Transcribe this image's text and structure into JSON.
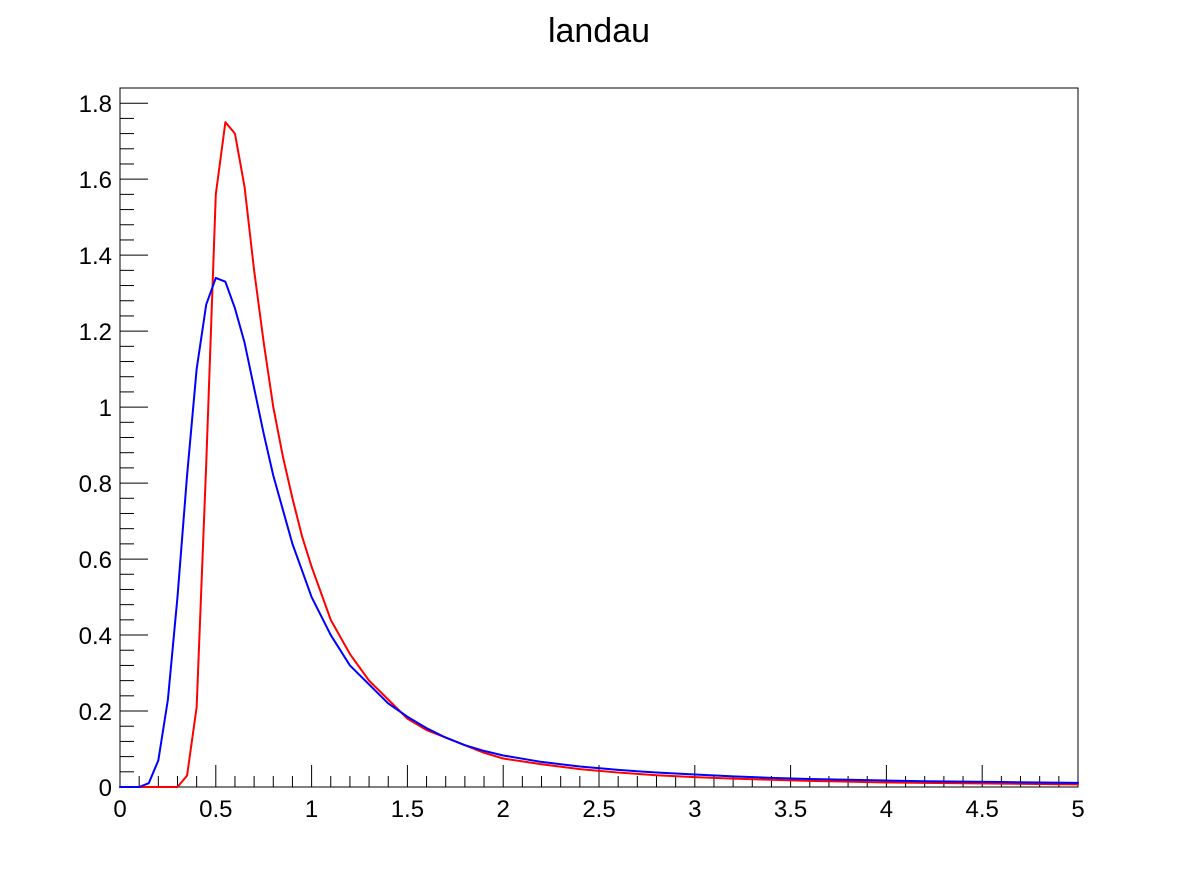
{
  "chart_data": {
    "type": "line",
    "title": "landau",
    "xlabel": "",
    "ylabel": "",
    "xlim": [
      0,
      5
    ],
    "ylim": [
      0,
      1.84
    ],
    "x_ticks": [
      "0",
      "0.5",
      "1",
      "1.5",
      "2",
      "2.5",
      "3",
      "3.5",
      "4",
      "4.5",
      "5"
    ],
    "y_ticks": [
      "0",
      "0.2",
      "0.4",
      "0.6",
      "0.8",
      "1",
      "1.2",
      "1.4",
      "1.6",
      "1.8"
    ],
    "grid": false,
    "legend": "none",
    "series": [
      {
        "color": "#ff0000",
        "x": [
          0.0,
          0.05,
          0.1,
          0.15,
          0.2,
          0.25,
          0.3,
          0.35,
          0.4,
          0.45,
          0.5,
          0.55,
          0.6,
          0.65,
          0.7,
          0.75,
          0.8,
          0.85,
          0.9,
          0.95,
          1.0,
          1.1,
          1.2,
          1.3,
          1.4,
          1.5,
          1.6,
          1.7,
          1.8,
          1.9,
          2.0,
          2.2,
          2.4,
          2.6,
          2.8,
          3.0,
          3.2,
          3.4,
          3.6,
          3.8,
          4.0,
          4.2,
          4.4,
          4.6,
          4.8,
          5.0
        ],
        "values": [
          0.0,
          0.0,
          0.0,
          0.0,
          0.0,
          0.0,
          0.0,
          0.03,
          0.21,
          0.85,
          1.56,
          1.75,
          1.72,
          1.58,
          1.36,
          1.17,
          1.0,
          0.87,
          0.76,
          0.66,
          0.58,
          0.44,
          0.35,
          0.28,
          0.23,
          0.18,
          0.15,
          0.13,
          0.11,
          0.09,
          0.075,
          0.06,
          0.047,
          0.038,
          0.031,
          0.026,
          0.022,
          0.019,
          0.016,
          0.014,
          0.012,
          0.011,
          0.01,
          0.009,
          0.008,
          0.007
        ]
      },
      {
        "color": "#0000ff",
        "x": [
          0.0,
          0.05,
          0.1,
          0.15,
          0.2,
          0.25,
          0.3,
          0.35,
          0.4,
          0.45,
          0.5,
          0.55,
          0.6,
          0.65,
          0.7,
          0.75,
          0.8,
          0.85,
          0.9,
          0.95,
          1.0,
          1.1,
          1.2,
          1.3,
          1.4,
          1.5,
          1.6,
          1.7,
          1.8,
          1.9,
          2.0,
          2.2,
          2.4,
          2.6,
          2.8,
          3.0,
          3.2,
          3.4,
          3.6,
          3.8,
          4.0,
          4.2,
          4.4,
          4.6,
          4.8,
          5.0
        ],
        "values": [
          0.0,
          0.0,
          0.0,
          0.01,
          0.07,
          0.23,
          0.5,
          0.82,
          1.1,
          1.27,
          1.34,
          1.33,
          1.26,
          1.17,
          1.05,
          0.93,
          0.82,
          0.73,
          0.64,
          0.57,
          0.5,
          0.4,
          0.32,
          0.27,
          0.22,
          0.185,
          0.155,
          0.13,
          0.11,
          0.095,
          0.083,
          0.066,
          0.054,
          0.045,
          0.038,
          0.033,
          0.028,
          0.024,
          0.021,
          0.019,
          0.017,
          0.015,
          0.014,
          0.013,
          0.012,
          0.011
        ]
      }
    ]
  }
}
